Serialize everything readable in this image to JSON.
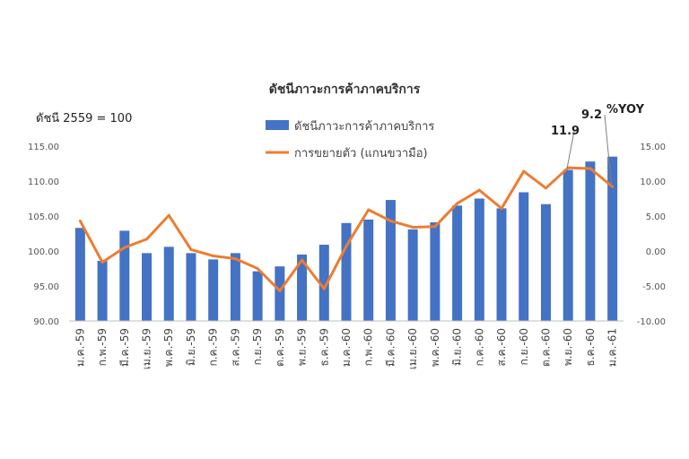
{
  "chart_data": {
    "type": "bar",
    "title": "ดัชนีภาวะการค้าภาคบริการ",
    "left_axis_label": "ดัชนี 2559 = 100",
    "right_axis_label": "%YOY",
    "categories": [
      "ม.ค.-59",
      "ก.พ.-59",
      "มี.ค.-59",
      "เม.ย.-59",
      "พ.ค.-59",
      "มิ.ย.-59",
      "ก.ค.-59",
      "ส.ค.-59",
      "ก.ย.-59",
      "ต.ค.-59",
      "พ.ย.-59",
      "ธ.ค.-59",
      "ม.ค.-60",
      "ก.พ.-60",
      "มี.ค.-60",
      "เม.ย.-60",
      "พ.ค.-60",
      "มิ.ย.-60",
      "ก.ค.-60",
      "ส.ค.-60",
      "ก.ย.-60",
      "ต.ค.-60",
      "พ.ย.-60",
      "ธ.ค.-60",
      "ม.ค.-61"
    ],
    "series": [
      {
        "name": "ดัชนีภาวะการค้าภาคบริการ",
        "type": "bar",
        "axis": "left",
        "color": "#4472C4",
        "values": [
          103.3,
          98.6,
          102.9,
          99.7,
          100.6,
          99.7,
          98.8,
          99.7,
          97.1,
          97.8,
          99.5,
          100.9,
          104.0,
          104.5,
          107.3,
          103.1,
          104.1,
          106.5,
          107.5,
          106.1,
          108.4,
          106.7,
          111.6,
          112.8,
          113.5
        ]
      },
      {
        "name": "การขยายตัว (แกนขวามือ)",
        "type": "line",
        "axis": "right",
        "color": "#ED7D31",
        "values": [
          4.3,
          -1.6,
          0.5,
          1.7,
          5.1,
          0.2,
          -0.7,
          -1.1,
          -2.5,
          -5.7,
          -1.3,
          -5.4,
          0.7,
          5.9,
          4.3,
          3.4,
          3.5,
          6.8,
          8.7,
          6.1,
          11.4,
          9.0,
          11.9,
          11.8,
          9.2
        ]
      }
    ],
    "left_ylim": [
      90,
      115
    ],
    "left_yticks": [
      "90.00",
      "95.00",
      "100.00",
      "105.00",
      "110.00",
      "115.00"
    ],
    "right_ylim": [
      -10,
      15
    ],
    "right_yticks": [
      "-10.00",
      "-5.00",
      "0.00",
      "5.00",
      "10.00",
      "15.00"
    ],
    "annotations": [
      {
        "text": "11.9",
        "category_index": 22
      },
      {
        "text": "9.2",
        "category_index": 24
      }
    ],
    "legend_position": "top-center",
    "grid": false
  }
}
